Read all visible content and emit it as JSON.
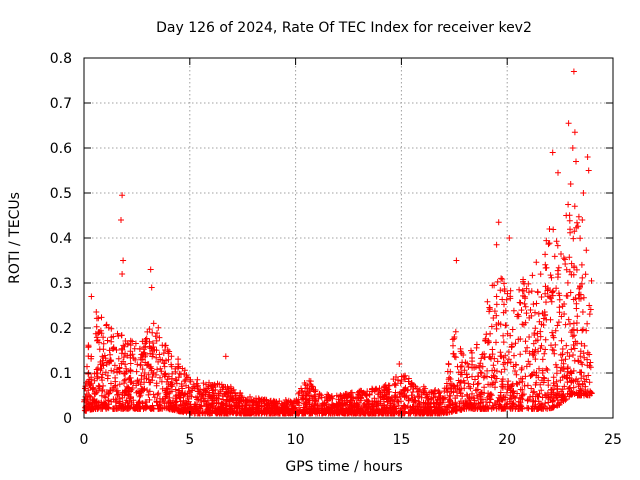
{
  "chart_data": {
    "type": "scatter",
    "title": "Day 126 of 2024, Rate Of TEC Index for receiver kev2",
    "xlabel": "GPS time / hours",
    "ylabel": "ROTI / TECUs",
    "xlim": [
      0,
      25
    ],
    "ylim": [
      0,
      0.8
    ],
    "xticks": [
      0,
      5,
      10,
      15,
      20,
      25
    ],
    "yticks": [
      0,
      0.1,
      0.2,
      0.3,
      0.4,
      0.5,
      0.6,
      0.7,
      0.8
    ],
    "xtick_labels": [
      "0",
      "5",
      "10",
      "15",
      "20",
      "25"
    ],
    "ytick_labels": [
      "0",
      "0.1",
      "0.2",
      "0.3",
      "0.4",
      "0.5",
      "0.6",
      "0.7",
      "0.8"
    ],
    "grid": true,
    "marker": "+",
    "color": "#ff0000",
    "series": [
      {
        "name": "ROTI",
        "notable_points": [
          {
            "x": 1.8,
            "y": 0.495
          },
          {
            "x": 1.75,
            "y": 0.44
          },
          {
            "x": 1.85,
            "y": 0.35
          },
          {
            "x": 1.8,
            "y": 0.32
          },
          {
            "x": 3.15,
            "y": 0.33
          },
          {
            "x": 3.2,
            "y": 0.29
          },
          {
            "x": 0.35,
            "y": 0.27
          },
          {
            "x": 6.7,
            "y": 0.137
          },
          {
            "x": 14.9,
            "y": 0.12
          },
          {
            "x": 17.6,
            "y": 0.35
          },
          {
            "x": 19.6,
            "y": 0.435
          },
          {
            "x": 19.5,
            "y": 0.385
          },
          {
            "x": 20.1,
            "y": 0.4
          },
          {
            "x": 22.15,
            "y": 0.59
          },
          {
            "x": 22.4,
            "y": 0.545
          },
          {
            "x": 22.9,
            "y": 0.655
          },
          {
            "x": 23.15,
            "y": 0.77
          },
          {
            "x": 23.2,
            "y": 0.635
          },
          {
            "x": 23.1,
            "y": 0.6
          },
          {
            "x": 23.25,
            "y": 0.57
          },
          {
            "x": 23.0,
            "y": 0.52
          },
          {
            "x": 23.6,
            "y": 0.5
          },
          {
            "x": 23.8,
            "y": 0.58
          },
          {
            "x": 23.85,
            "y": 0.55
          },
          {
            "x": 23.55,
            "y": 0.44
          },
          {
            "x": 22.0,
            "y": 0.42
          }
        ],
        "envelope": [
          {
            "x": 0.0,
            "low": 0.015,
            "high": 0.13
          },
          {
            "x": 0.5,
            "low": 0.02,
            "high": 0.25
          },
          {
            "x": 1.0,
            "low": 0.02,
            "high": 0.21
          },
          {
            "x": 1.5,
            "low": 0.02,
            "high": 0.2
          },
          {
            "x": 2.0,
            "low": 0.02,
            "high": 0.19
          },
          {
            "x": 2.5,
            "low": 0.02,
            "high": 0.17
          },
          {
            "x": 3.0,
            "low": 0.02,
            "high": 0.2
          },
          {
            "x": 3.5,
            "low": 0.02,
            "high": 0.22
          },
          {
            "x": 4.0,
            "low": 0.02,
            "high": 0.15
          },
          {
            "x": 4.5,
            "low": 0.015,
            "high": 0.13
          },
          {
            "x": 5.0,
            "low": 0.01,
            "high": 0.09
          },
          {
            "x": 6.0,
            "low": 0.01,
            "high": 0.08
          },
          {
            "x": 7.0,
            "low": 0.01,
            "high": 0.07
          },
          {
            "x": 8.0,
            "low": 0.01,
            "high": 0.045
          },
          {
            "x": 9.0,
            "low": 0.01,
            "high": 0.04
          },
          {
            "x": 10.0,
            "low": 0.01,
            "high": 0.04
          },
          {
            "x": 10.5,
            "low": 0.01,
            "high": 0.1
          },
          {
            "x": 11.0,
            "low": 0.01,
            "high": 0.06
          },
          {
            "x": 12.0,
            "low": 0.01,
            "high": 0.05
          },
          {
            "x": 13.0,
            "low": 0.01,
            "high": 0.06
          },
          {
            "x": 14.0,
            "low": 0.01,
            "high": 0.07
          },
          {
            "x": 15.0,
            "low": 0.01,
            "high": 0.1
          },
          {
            "x": 16.0,
            "low": 0.01,
            "high": 0.07
          },
          {
            "x": 17.0,
            "low": 0.01,
            "high": 0.06
          },
          {
            "x": 17.5,
            "low": 0.015,
            "high": 0.2
          },
          {
            "x": 18.0,
            "low": 0.02,
            "high": 0.14
          },
          {
            "x": 18.5,
            "low": 0.02,
            "high": 0.16
          },
          {
            "x": 19.0,
            "low": 0.02,
            "high": 0.25
          },
          {
            "x": 19.5,
            "low": 0.02,
            "high": 0.33
          },
          {
            "x": 20.0,
            "low": 0.02,
            "high": 0.3
          },
          {
            "x": 20.5,
            "low": 0.02,
            "high": 0.28
          },
          {
            "x": 21.0,
            "low": 0.02,
            "high": 0.34
          },
          {
            "x": 21.5,
            "low": 0.02,
            "high": 0.35
          },
          {
            "x": 22.0,
            "low": 0.02,
            "high": 0.42
          },
          {
            "x": 22.5,
            "low": 0.03,
            "high": 0.45
          },
          {
            "x": 23.0,
            "low": 0.05,
            "high": 0.5
          },
          {
            "x": 23.5,
            "low": 0.05,
            "high": 0.45
          },
          {
            "x": 24.0,
            "low": 0.05,
            "high": 0.34
          }
        ]
      }
    ]
  }
}
